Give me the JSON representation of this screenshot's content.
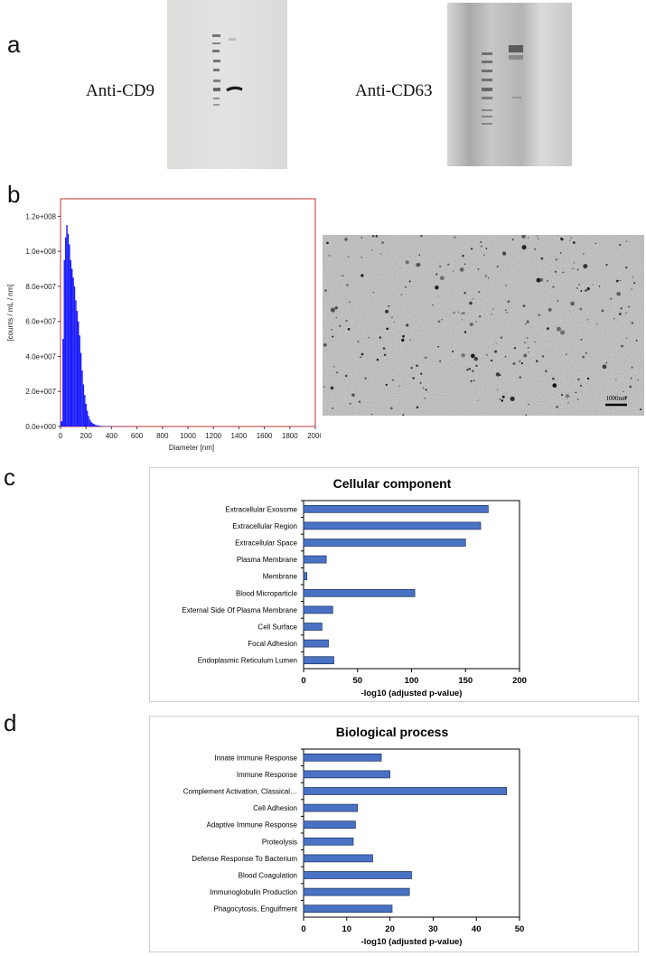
{
  "panels": {
    "a": {
      "letter": "a",
      "label_cd9": "Anti-CD9",
      "label_cd63": "Anti-CD63"
    },
    "b": {
      "letter": "b",
      "scale_bar_label": "1000nm"
    },
    "c": {
      "letter": "c"
    },
    "d": {
      "letter": "d"
    }
  },
  "chart_data": [
    {
      "type": "bar",
      "panel": "b",
      "xlabel": "Diameter [nm]",
      "ylabel": "[counts / mL / nm]",
      "xlim": [
        0,
        2000
      ],
      "ylim": [
        0,
        130000000
      ],
      "xticks": [
        "0",
        "200",
        "400",
        "600",
        "800",
        "1000",
        "1200",
        "1400",
        "1600",
        "1800",
        "2000"
      ],
      "yticks": [
        "0.0e+000",
        "2.0e+007",
        "4.0e+007",
        "6.0e+007",
        "8.0e+007",
        "1.0e+008",
        "1.2e+008"
      ],
      "color": "#1a1aff",
      "x": [
        10,
        20,
        30,
        40,
        50,
        60,
        70,
        80,
        90,
        100,
        110,
        120,
        130,
        140,
        150,
        160,
        170,
        180,
        190,
        200,
        210,
        220,
        230,
        240,
        250,
        260,
        280,
        300,
        320,
        340,
        380,
        420,
        500,
        580
      ],
      "values": [
        3000000,
        50000000,
        95000000,
        108000000,
        115000000,
        110000000,
        104000000,
        95000000,
        90000000,
        85000000,
        80000000,
        72000000,
        66000000,
        60000000,
        52000000,
        42000000,
        32000000,
        24000000,
        18000000,
        13000000,
        9000000,
        6000000,
        4000000,
        2800000,
        2000000,
        1400000,
        800000,
        500000,
        300000,
        200000,
        150000,
        100000,
        80000,
        50000
      ]
    },
    {
      "type": "bar",
      "panel": "c",
      "title": "Cellular component",
      "xlabel": "-log10 (adjusted p-value)",
      "xlim": [
        0,
        200
      ],
      "xticks": [
        "0",
        "50",
        "100",
        "150",
        "200"
      ],
      "bar_color": "#4a72c4",
      "categories": [
        "Extracellular Exosome",
        "Extracellular Region",
        "Extracellular Space",
        "Plasma Membrane",
        "Membrane",
        "Blood Microparticle",
        "External Side Of Plasma Membrane",
        "Cell Surface",
        "Focal Adhesion",
        "Endoplasmic Reticulum Lumen"
      ],
      "values": [
        171,
        164,
        150,
        21,
        3,
        103,
        27,
        17,
        23,
        28
      ]
    },
    {
      "type": "bar",
      "panel": "d",
      "title": "Biological process",
      "xlabel": "-log10 (adjusted p-value)",
      "xlim": [
        0,
        50
      ],
      "xticks": [
        "0",
        "10",
        "20",
        "30",
        "40",
        "50"
      ],
      "bar_color": "#4a72c4",
      "categories": [
        "Innate Immune Response",
        "Immune Response",
        "Complement Activation, Classical…",
        "Cell Adhesion",
        "Adaptive Immune Response",
        "Proteolysis",
        "Defense Response To Bacterium",
        "Blood Coagulation",
        "Immunoglobulin Production",
        "Phagocytosis, Engulfment"
      ],
      "values": [
        18,
        20,
        47,
        12.5,
        12,
        11.5,
        16,
        25,
        24.5,
        20.5
      ]
    }
  ]
}
